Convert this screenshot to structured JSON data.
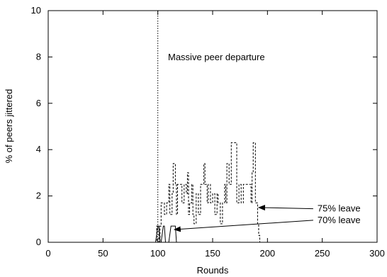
{
  "chart_data": {
    "type": "line",
    "xlabel": "Rounds",
    "ylabel": "% of peers jittered",
    "xlim": [
      0,
      300
    ],
    "ylim": [
      0,
      10
    ],
    "xticks": [
      "0",
      "50",
      "100",
      "150",
      "200",
      "250",
      "300"
    ],
    "yticks": [
      "0",
      "2",
      "4",
      "6",
      "8",
      "10"
    ],
    "grid": false,
    "event_line": {
      "x": 100,
      "label": "Massive peer departure"
    },
    "series": [
      {
        "name": "75% leave",
        "style": "dashed",
        "points": [
          [
            0,
            0
          ],
          [
            99,
            0
          ],
          [
            99,
            0.7
          ],
          [
            101,
            0.7
          ],
          [
            101,
            0
          ],
          [
            102,
            0
          ],
          [
            102,
            0.7
          ],
          [
            103,
            0.7
          ],
          [
            103,
            1.7
          ],
          [
            106,
            1.7
          ],
          [
            106,
            1.2
          ],
          [
            108,
            1.2
          ],
          [
            108,
            1.7
          ],
          [
            110,
            1.7
          ],
          [
            110,
            2.5
          ],
          [
            111,
            2.5
          ],
          [
            111,
            1.2
          ],
          [
            113,
            1.2
          ],
          [
            113,
            2.1
          ],
          [
            114,
            2.1
          ],
          [
            114,
            3.4
          ],
          [
            116,
            3.4
          ],
          [
            116,
            2.5
          ],
          [
            117,
            2.5
          ],
          [
            117,
            1.2
          ],
          [
            118,
            1.2
          ],
          [
            118,
            2.5
          ],
          [
            122,
            2.5
          ],
          [
            122,
            1.7
          ],
          [
            124,
            1.7
          ],
          [
            124,
            2.5
          ],
          [
            126,
            2.5
          ],
          [
            126,
            2.1
          ],
          [
            127,
            2.1
          ],
          [
            127,
            3.0
          ],
          [
            128,
            3.0
          ],
          [
            128,
            1.2
          ],
          [
            129,
            1.2
          ],
          [
            129,
            1.7
          ],
          [
            131,
            1.7
          ],
          [
            131,
            2.5
          ],
          [
            132,
            2.5
          ],
          [
            132,
            1.2
          ],
          [
            133,
            1.2
          ],
          [
            133,
            0.8
          ],
          [
            135,
            0.8
          ],
          [
            135,
            2.1
          ],
          [
            137,
            2.1
          ],
          [
            137,
            1.2
          ],
          [
            139,
            1.2
          ],
          [
            139,
            2.5
          ],
          [
            142,
            2.5
          ],
          [
            142,
            3.4
          ],
          [
            143,
            3.4
          ],
          [
            143,
            2.5
          ],
          [
            145,
            2.5
          ],
          [
            145,
            1.7
          ],
          [
            146,
            1.7
          ],
          [
            146,
            2.5
          ],
          [
            148,
            2.5
          ],
          [
            148,
            1.7
          ],
          [
            150,
            1.7
          ],
          [
            150,
            2.1
          ],
          [
            152,
            2.1
          ],
          [
            152,
            1.2
          ],
          [
            154,
            1.2
          ],
          [
            154,
            2.1
          ],
          [
            155,
            2.1
          ],
          [
            155,
            1.7
          ],
          [
            157,
            1.7
          ],
          [
            157,
            0.8
          ],
          [
            159,
            0.8
          ],
          [
            159,
            1.7
          ],
          [
            161,
            1.7
          ],
          [
            161,
            2.5
          ],
          [
            162,
            2.5
          ],
          [
            162,
            1.7
          ],
          [
            163,
            1.7
          ],
          [
            163,
            3.4
          ],
          [
            165,
            3.4
          ],
          [
            165,
            2.5
          ],
          [
            167,
            2.5
          ],
          [
            167,
            4.3
          ],
          [
            172,
            4.3
          ],
          [
            172,
            1.7
          ],
          [
            174,
            1.7
          ],
          [
            174,
            2.5
          ],
          [
            176,
            2.5
          ],
          [
            176,
            1.7
          ],
          [
            178,
            1.7
          ],
          [
            178,
            2.5
          ],
          [
            185,
            2.5
          ],
          [
            185,
            1.7
          ],
          [
            186,
            1.7
          ],
          [
            186,
            3.0
          ],
          [
            187,
            3.0
          ],
          [
            187,
            4.3
          ],
          [
            189,
            4.3
          ],
          [
            189,
            1.7
          ],
          [
            191,
            1.7
          ],
          [
            191,
            0.8
          ],
          [
            192,
            0.8
          ],
          [
            192,
            0.3
          ],
          [
            193,
            0.3
          ],
          [
            193,
            0
          ]
        ]
      },
      {
        "name": "70% leave",
        "style": "solid",
        "points": [
          [
            0,
            0
          ],
          [
            98,
            0
          ],
          [
            100,
            0.7
          ],
          [
            101,
            0.7
          ],
          [
            102,
            0
          ],
          [
            103,
            0
          ],
          [
            105,
            0.7
          ],
          [
            106,
            0.7
          ],
          [
            107,
            0
          ],
          [
            110,
            0
          ],
          [
            112,
            0.7
          ],
          [
            116,
            0.7
          ],
          [
            117,
            0
          ],
          [
            300,
            0
          ]
        ]
      }
    ],
    "annotations": [
      {
        "text": "75% leave",
        "arrow_to": [
          192,
          1.5
        ],
        "text_at": [
          212,
          1.45
        ]
      },
      {
        "text": "70% leave",
        "arrow_to": [
          115,
          0.55
        ],
        "text_at": [
          212,
          0.95
        ]
      }
    ]
  }
}
